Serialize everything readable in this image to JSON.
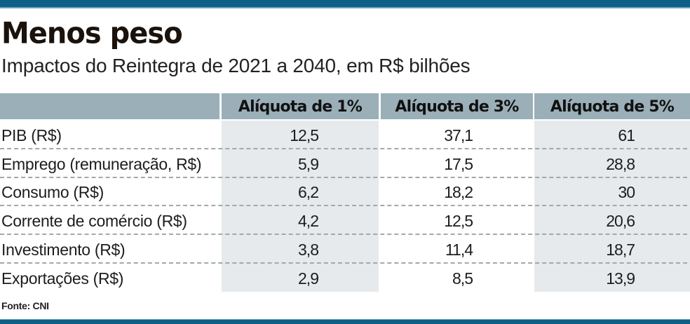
{
  "header": {
    "title": "Menos peso",
    "subtitle": "Impactos do Reintegra de 2021 a 2040, em R$ bilhões"
  },
  "table": {
    "columns": [
      "",
      "Alíquota de 1%",
      "Alíquota de 3%",
      "Alíquota de 5%"
    ],
    "rows": [
      {
        "label": "PIB (R$)",
        "values": [
          "12,5",
          "37,1",
          "61"
        ]
      },
      {
        "label": "Emprego (remuneração, R$)",
        "values": [
          "5,9",
          "17,5",
          "28,8"
        ]
      },
      {
        "label": "Consumo (R$)",
        "values": [
          "6,2",
          "18,2",
          "30"
        ]
      },
      {
        "label": "Corrente de comércio (R$)",
        "values": [
          "4,2",
          "12,5",
          "20,6"
        ]
      },
      {
        "label": "Investimento (R$)",
        "values": [
          "3,8",
          "11,4",
          "18,7"
        ]
      },
      {
        "label": "Exportações (R$)",
        "values": [
          "2,9",
          "8,5",
          "13,9"
        ]
      }
    ]
  },
  "footer": {
    "source": "Fonte: CNI"
  },
  "colors": {
    "accent_bar": "#0d5f86",
    "header_bg": "#9aafb8",
    "shaded_column": "#e6eaec"
  },
  "chart_data": {
    "type": "table",
    "title": "Menos peso",
    "subtitle": "Impactos do Reintegra de 2021 a 2040, em R$ bilhões",
    "categories": [
      "PIB (R$)",
      "Emprego (remuneração, R$)",
      "Consumo (R$)",
      "Corrente de comércio (R$)",
      "Investimento (R$)",
      "Exportações (R$)"
    ],
    "series": [
      {
        "name": "Alíquota de 1%",
        "values": [
          12.5,
          5.9,
          6.2,
          4.2,
          3.8,
          2.9
        ]
      },
      {
        "name": "Alíquota de 3%",
        "values": [
          37.1,
          17.5,
          18.2,
          12.5,
          11.4,
          8.5
        ]
      },
      {
        "name": "Alíquota de 5%",
        "values": [
          61,
          28.8,
          30,
          20.6,
          18.7,
          13.9
        ]
      }
    ],
    "source": "Fonte: CNI"
  }
}
